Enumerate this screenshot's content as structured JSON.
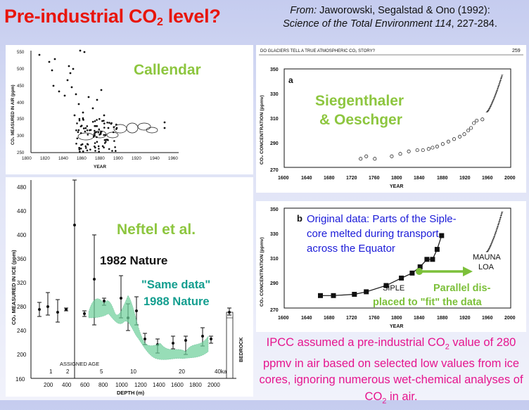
{
  "header": {
    "title_main": "Pre-industrial CO",
    "title_sub": "2",
    "title_end": " level?",
    "citation_from": "From:",
    "citation_authors": " Jaworowski, Segalstad & Ono (1992):",
    "citation_journal": "Science of the Total Environment 114",
    "citation_pages": ", 227-284."
  },
  "callendar": {
    "label": "Callendar",
    "ylabel": "CO₂ MEASURED IN AIR (ppm)",
    "xlabel": "YEAR",
    "yticks": [
      "550",
      "500",
      "450",
      "400",
      "350",
      "300",
      "250"
    ],
    "xticks": [
      "1800",
      "1820",
      "1840",
      "1860",
      "1880",
      "1900",
      "1920",
      "1940",
      "1960"
    ]
  },
  "neftel": {
    "label": "Neftel et al.",
    "label_1982": "1982 Nature",
    "label_same_data": "\"Same data\"",
    "label_1988": "1988 Nature",
    "ylabel": "CO₂ MEASURED IN ICE (ppm)",
    "xlabel": "DEPTH (m)",
    "yticks": [
      "480",
      "440",
      "400",
      "360",
      "320",
      "280",
      "240",
      "200",
      "160"
    ],
    "xticks": [
      "200",
      "400",
      "600",
      "800",
      "1000",
      "1200",
      "1400",
      "1600",
      "1800",
      "2000"
    ],
    "assigned_age": "ASSIGNED AGE",
    "age_ticks": [
      "1",
      "2",
      "5",
      "10",
      "20",
      "40ka"
    ],
    "bedrock": "BEDROCK"
  },
  "siegenthaler": {
    "running_head": "DO GLACIERS TELL A TRUE ATMOSPHERIC CO₂ STORY?",
    "page_number": "259",
    "panel_letter": "a",
    "label_line1": "Siegenthaler",
    "label_line2": "& Oeschger",
    "ylabel": "CO₂ CONCENTRATION (ppmv)",
    "xlabel": "YEAR",
    "yticks": [
      "350",
      "330",
      "310",
      "290",
      "270"
    ],
    "xticks": [
      "1600",
      "1640",
      "1680",
      "1720",
      "1760",
      "1800",
      "1840",
      "1880",
      "1920",
      "1960",
      "2000"
    ]
  },
  "siple": {
    "panel_letter": "b",
    "note": "Original data: Parts of the Siple-core melted during transport across the Equator",
    "label_siple": "SIPLE",
    "label_mauna_line1": "MAUNA",
    "label_mauna_line2": "LOA",
    "label_parallel_line1": "Parallel dis-",
    "label_parallel_line2": "placed to \"fit\" the data",
    "ylabel": "CO₂ CONCENTRATION (ppmv)",
    "xlabel": "YEAR",
    "yticks": [
      "350",
      "330",
      "310",
      "290",
      "270"
    ],
    "xticks": [
      "1600",
      "1640",
      "1680",
      "1720",
      "1760",
      "1800",
      "1840",
      "1880",
      "1920",
      "1960",
      "2000"
    ]
  },
  "footer": {
    "ipcc_1": "IPCC assumed a pre-industrial CO",
    "ipcc_sub1": "2",
    "ipcc_2": " value of 280 ppmv in air based on selected low values from ice cores, ignoring numerous wet-chemical analyses of CO",
    "ipcc_sub2": "2",
    "ipcc_3": " in air."
  },
  "colors": {
    "title": "#e8150a",
    "callout_green": "#8dc63f",
    "teal": "#139e8f",
    "blue_note": "#1b1bd8",
    "ipcc_pink": "#e5158e"
  }
}
